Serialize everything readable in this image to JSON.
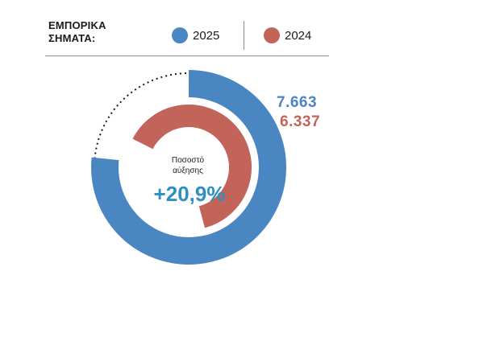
{
  "legend": {
    "title_line1": "ΕΜΠΟΡΙΚΑ",
    "title_line2": "ΣΗΜΑΤΑ:",
    "items": [
      {
        "label": "2025",
        "color": "#4a86c1"
      },
      {
        "label": "2024",
        "color": "#c2645a"
      }
    ]
  },
  "center": {
    "caption_line1": "Ποσοστό",
    "caption_line2": "αύξησης",
    "value": "+20,9%",
    "value_color": "#2e8fc4"
  },
  "chart_data": {
    "type": "pie",
    "subtype": "radial-bar",
    "series": [
      {
        "name": "2025",
        "value": 7663,
        "label": "7.663",
        "color": "#4a86c1"
      },
      {
        "name": "2024",
        "value": 6337,
        "label": "6.337",
        "color": "#c2645a"
      }
    ],
    "max": 10000,
    "growth_label": "+20,9%"
  }
}
